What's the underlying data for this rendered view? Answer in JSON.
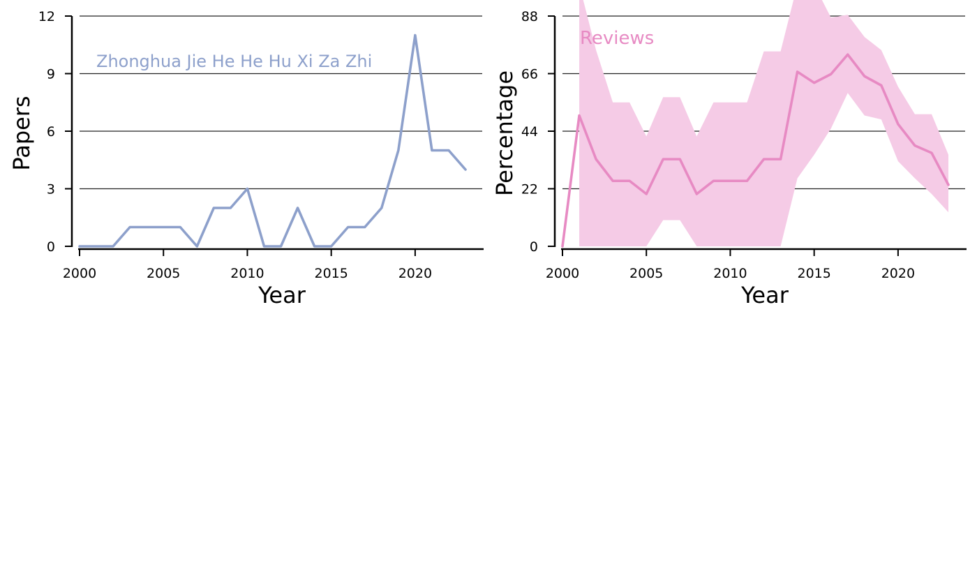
{
  "chart_data": [
    {
      "type": "line",
      "title": "",
      "annotation": "Zhonghua Jie He He Hu Xi Za Zhi",
      "xlabel": "Year",
      "ylabel": "Papers",
      "xlim": [
        2000,
        2024
      ],
      "ylim": [
        0,
        12
      ],
      "xticks": [
        2000,
        2005,
        2010,
        2015,
        2020
      ],
      "yticks": [
        0,
        3,
        6,
        9,
        12
      ],
      "grid": "horizontal",
      "color": "#8da0cb",
      "x": [
        2000,
        2001,
        2002,
        2003,
        2004,
        2005,
        2006,
        2007,
        2008,
        2009,
        2010,
        2011,
        2012,
        2013,
        2014,
        2015,
        2016,
        2017,
        2018,
        2019,
        2020,
        2021,
        2022,
        2023
      ],
      "series": [
        {
          "values": [
            0,
            0,
            0,
            1,
            1,
            1,
            1,
            0,
            2,
            2,
            3,
            0,
            0,
            2,
            0,
            0,
            1,
            1,
            2,
            5,
            11,
            5,
            5,
            4
          ]
        }
      ]
    },
    {
      "type": "area",
      "title": "",
      "annotation": "Reviews",
      "xlabel": "Year",
      "ylabel": "Percentage",
      "xlim": [
        2000,
        2024
      ],
      "ylim": [
        0,
        88
      ],
      "xticks": [
        2000,
        2005,
        2010,
        2015,
        2020
      ],
      "yticks": [
        0,
        22,
        44,
        66,
        88
      ],
      "grid": "horizontal",
      "color": "#e78ac3",
      "band_color": "#f5cbe6",
      "x": [
        2000,
        2001,
        2002,
        2003,
        2004,
        2005,
        2006,
        2007,
        2008,
        2009,
        2010,
        2011,
        2012,
        2013,
        2014,
        2015,
        2016,
        2017,
        2018,
        2019,
        2020,
        2021,
        2022,
        2023
      ],
      "series": [
        {
          "values": [
            0,
            50,
            33.3,
            25,
            25,
            20,
            33.3,
            33.3,
            20,
            25,
            25,
            25,
            33.3,
            33.3,
            66.7,
            62.5,
            65.8,
            73.3,
            65,
            61.5,
            46.7,
            38.5,
            35.7,
            23.5
          ],
          "lower": [
            0,
            0,
            0,
            0,
            0,
            0,
            10,
            10,
            0,
            0,
            0,
            0,
            0,
            0,
            26,
            35,
            45,
            58.6,
            50,
            48.5,
            32.5,
            26,
            20,
            13
          ],
          "upper": [
            0,
            100,
            75,
            55,
            55,
            42,
            57,
            57,
            42,
            55,
            55,
            55,
            74.5,
            74.5,
            100,
            100,
            87.4,
            88.5,
            80,
            75,
            61,
            50.5,
            50.5,
            35
          ]
        }
      ]
    }
  ]
}
